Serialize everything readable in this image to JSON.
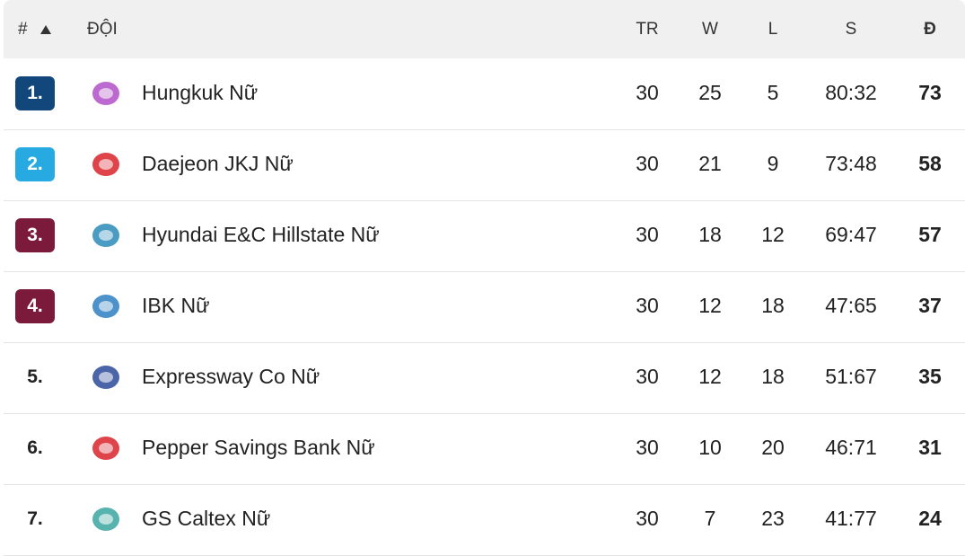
{
  "table": {
    "header": [
      "#",
      "ĐỘI",
      "TR",
      "W",
      "L",
      "S",
      "Đ"
    ],
    "rows": [
      [
        "1.",
        "Hungkuk Nữ",
        "30",
        "25",
        "5",
        "80:32",
        "73"
      ],
      [
        "2.",
        "Daejeon JKJ Nữ",
        "30",
        "21",
        "9",
        "73:48",
        "58"
      ],
      [
        "3.",
        "Hyundai E&C Hillstate Nữ",
        "30",
        "18",
        "12",
        "69:47",
        "57"
      ],
      [
        "4.",
        "IBK Nữ",
        "30",
        "12",
        "18",
        "47:65",
        "37"
      ],
      [
        "5.",
        "Expressway Co Nữ",
        "30",
        "12",
        "18",
        "51:67",
        "35"
      ],
      [
        "6.",
        "Pepper Savings Bank Nữ",
        "30",
        "10",
        "20",
        "46:71",
        "31"
      ],
      [
        "7.",
        "GS Caltex Nữ",
        "30",
        "7",
        "23",
        "41:77",
        "24"
      ]
    ]
  }
}
